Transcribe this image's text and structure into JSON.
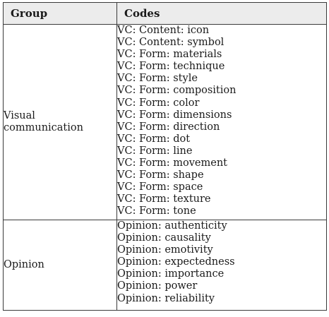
{
  "table": {
    "headers": {
      "group": "Group",
      "codes": "Codes"
    },
    "rows": [
      {
        "group_lines": [
          "Visual",
          "communication"
        ],
        "codes": [
          "VC: Content: icon",
          "VC: Content: symbol",
          "VC: Form: materials",
          "VC: Form: technique",
          "VC: Form: style",
          "VC: Form: composition",
          "VC: Form: color",
          "VC: Form: dimensions",
          "VC: Form: direction",
          "VC: Form: dot",
          "VC: Form: line",
          "VC: Form: movement",
          "VC: Form: shape",
          "VC: Form: space",
          "VC: Form: texture",
          "VC: Form: tone"
        ]
      },
      {
        "group_lines": [
          "Opinion"
        ],
        "codes": [
          "Opinion: authenticity",
          "Opinion: causality",
          "Opinion: emotivity",
          "Opinion: expectedness",
          "Opinion: importance",
          "Opinion: power",
          "Opinion: reliability"
        ]
      }
    ]
  }
}
